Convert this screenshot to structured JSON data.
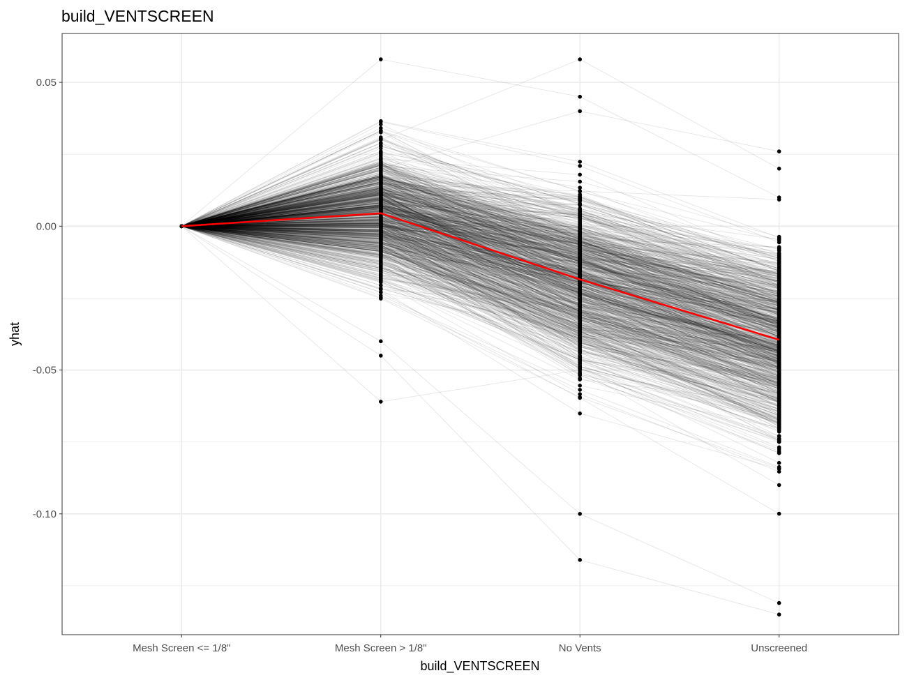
{
  "chart_data": {
    "type": "line",
    "title": "build_VENTSCREEN",
    "xlabel": "build_VENTSCREEN",
    "ylabel": "yhat",
    "categories": [
      "Mesh Screen <= 1/8\"",
      "Mesh Screen > 1/8\"",
      "No Vents",
      "Unscreened"
    ],
    "ylim": [
      -0.142,
      0.067
    ],
    "yticks": [
      0.05,
      0.0,
      -0.05,
      -0.1
    ],
    "ytick_labels": [
      "0.05",
      "0.00",
      "-0.05",
      "-0.10"
    ],
    "grid": true,
    "legend": "none",
    "series": [
      {
        "role": "average",
        "color": "#ff0000",
        "values": [
          0.0,
          0.0045,
          -0.0185,
          -0.0395
        ]
      }
    ],
    "individual_curves": {
      "count_approx": 1000,
      "color": "#000000",
      "opacity": 0.1,
      "point_color": "#000000",
      "category_ranges": [
        {
          "category": "Mesh Screen <= 1/8\"",
          "min": 0.0,
          "max": 0.0
        },
        {
          "category": "Mesh Screen > 1/8\"",
          "min": -0.061,
          "max": 0.058
        },
        {
          "category": "No Vents",
          "min": -0.116,
          "max": 0.058
        },
        {
          "category": "Unscreened",
          "min": -0.135,
          "max": 0.026
        }
      ]
    }
  }
}
